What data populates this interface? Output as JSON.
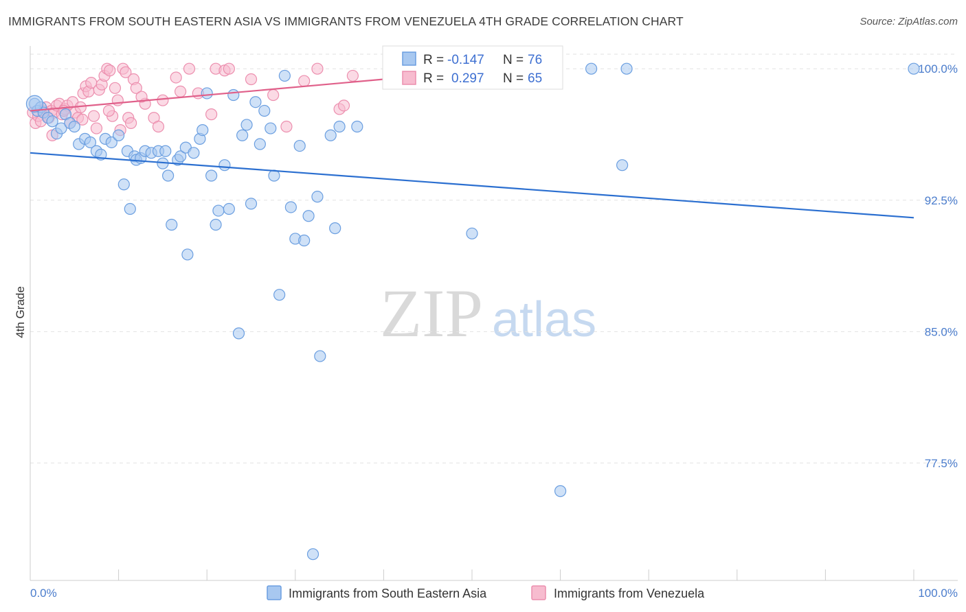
{
  "title": "IMMIGRANTS FROM SOUTH EASTERN ASIA VS IMMIGRANTS FROM VENEZUELA 4TH GRADE CORRELATION CHART",
  "source": "Source: ZipAtlas.com",
  "watermark": {
    "zip": "ZIP",
    "atlas": "atlas"
  },
  "stats": {
    "r_label": "R =",
    "n_label": "N =",
    "blue": {
      "r": "-0.147",
      "n": "76"
    },
    "pink": {
      "r": "0.297",
      "n": "65"
    }
  },
  "colors": {
    "blue_fill": "#a8c8f0",
    "blue_stroke": "#6a9ee0",
    "blue_line": "#2b6fd0",
    "pink_fill": "#f7bccf",
    "pink_stroke": "#ec8eae",
    "pink_line": "#e0608a"
  },
  "chart_data": {
    "type": "scatter",
    "title": "IMMIGRANTS FROM SOUTH EASTERN ASIA VS IMMIGRANTS FROM VENEZUELA 4TH GRADE CORRELATION CHART",
    "xlabel": "",
    "ylabel": "4th Grade",
    "xlim": [
      0,
      100
    ],
    "ylim": [
      70.8,
      101.3
    ],
    "x_tick_labels": [
      "0.0%",
      "100.0%"
    ],
    "y_ticks": [
      100,
      92.5,
      85,
      77.5
    ],
    "y_tick_labels": [
      "100.0%",
      "92.5%",
      "85.0%",
      "77.5%"
    ],
    "grid": true,
    "legend_position": "bottom",
    "series": [
      {
        "name": "Immigrants from South Eastern Asia",
        "color": "#6a9ee0",
        "trend": {
          "x": [
            0,
            100
          ],
          "y": [
            95.2,
            91.5
          ]
        },
        "points": [
          [
            0.5,
            98.0
          ],
          [
            0.8,
            97.6
          ],
          [
            1.2,
            97.8
          ],
          [
            1.5,
            97.5
          ],
          [
            2.0,
            97.2
          ],
          [
            2.5,
            97.0
          ],
          [
            3.0,
            96.3
          ],
          [
            3.5,
            96.6
          ],
          [
            4.0,
            97.4
          ],
          [
            4.5,
            96.9
          ],
          [
            5.0,
            96.7
          ],
          [
            5.5,
            95.7
          ],
          [
            6.2,
            96.0
          ],
          [
            6.8,
            95.8
          ],
          [
            7.5,
            95.3
          ],
          [
            8.0,
            95.1
          ],
          [
            8.5,
            96.0
          ],
          [
            9.2,
            95.8
          ],
          [
            10.0,
            96.2
          ],
          [
            10.6,
            93.4
          ],
          [
            11.0,
            95.3
          ],
          [
            11.3,
            92.0
          ],
          [
            11.8,
            95.0
          ],
          [
            12.0,
            94.8
          ],
          [
            12.5,
            94.9
          ],
          [
            13.0,
            95.3
          ],
          [
            13.7,
            95.2
          ],
          [
            14.5,
            95.3
          ],
          [
            15.0,
            94.6
          ],
          [
            15.3,
            95.3
          ],
          [
            15.6,
            93.9
          ],
          [
            16.0,
            91.1
          ],
          [
            16.7,
            94.8
          ],
          [
            17.0,
            95.0
          ],
          [
            17.6,
            95.5
          ],
          [
            17.8,
            89.4
          ],
          [
            18.5,
            95.2
          ],
          [
            19.2,
            96.0
          ],
          [
            19.5,
            96.5
          ],
          [
            20.0,
            98.6
          ],
          [
            20.5,
            93.9
          ],
          [
            21.0,
            91.1
          ],
          [
            21.3,
            91.9
          ],
          [
            22.0,
            94.5
          ],
          [
            22.5,
            92.0
          ],
          [
            23.0,
            98.5
          ],
          [
            23.6,
            84.9
          ],
          [
            24.0,
            96.2
          ],
          [
            24.5,
            96.8
          ],
          [
            25.0,
            92.3
          ],
          [
            25.5,
            98.1
          ],
          [
            26.0,
            95.7
          ],
          [
            26.5,
            97.6
          ],
          [
            27.2,
            96.6
          ],
          [
            27.6,
            93.9
          ],
          [
            28.2,
            87.1
          ],
          [
            28.8,
            99.6
          ],
          [
            29.5,
            92.1
          ],
          [
            30.0,
            90.3
          ],
          [
            30.5,
            95.6
          ],
          [
            31.0,
            90.2
          ],
          [
            31.5,
            91.6
          ],
          [
            32.5,
            92.7
          ],
          [
            32.8,
            83.6
          ],
          [
            34.0,
            96.2
          ],
          [
            34.5,
            90.9
          ],
          [
            35.0,
            96.7
          ],
          [
            37.0,
            96.7
          ],
          [
            43.0,
            99.9
          ],
          [
            50.0,
            90.6
          ],
          [
            60.0,
            75.9
          ],
          [
            63.5,
            100.0
          ],
          [
            67.0,
            94.5
          ],
          [
            67.5,
            100.0
          ],
          [
            32.0,
            72.3
          ],
          [
            100.0,
            100.0
          ]
        ]
      },
      {
        "name": "Immigrants from Venezuela",
        "color": "#ec8eae",
        "trend": {
          "x": [
            0,
            40
          ],
          "y": [
            97.6,
            99.4
          ]
        },
        "points": [
          [
            0.3,
            97.5
          ],
          [
            0.6,
            96.9
          ],
          [
            0.9,
            97.3
          ],
          [
            1.2,
            97.0
          ],
          [
            1.5,
            97.6
          ],
          [
            1.8,
            97.8
          ],
          [
            2.1,
            97.2
          ],
          [
            2.4,
            97.6
          ],
          [
            2.7,
            97.5
          ],
          [
            3.0,
            97.9
          ],
          [
            3.3,
            98.0
          ],
          [
            3.6,
            97.4
          ],
          [
            3.9,
            97.7
          ],
          [
            4.2,
            97.9
          ],
          [
            4.5,
            96.9
          ],
          [
            4.8,
            98.1
          ],
          [
            5.1,
            97.5
          ],
          [
            5.4,
            97.2
          ],
          [
            5.7,
            97.8
          ],
          [
            6.0,
            98.6
          ],
          [
            6.3,
            99.0
          ],
          [
            6.6,
            98.7
          ],
          [
            6.9,
            99.2
          ],
          [
            7.2,
            97.3
          ],
          [
            7.5,
            96.6
          ],
          [
            7.8,
            98.8
          ],
          [
            8.1,
            99.1
          ],
          [
            8.4,
            99.6
          ],
          [
            8.7,
            100.0
          ],
          [
            9.0,
            99.9
          ],
          [
            9.3,
            97.3
          ],
          [
            9.6,
            98.9
          ],
          [
            9.9,
            98.2
          ],
          [
            10.2,
            96.5
          ],
          [
            10.5,
            100.0
          ],
          [
            10.8,
            99.8
          ],
          [
            11.1,
            97.2
          ],
          [
            11.4,
            96.9
          ],
          [
            11.7,
            99.4
          ],
          [
            12.0,
            98.9
          ],
          [
            13.0,
            98.0
          ],
          [
            14.0,
            97.2
          ],
          [
            14.5,
            96.7
          ],
          [
            15.0,
            98.2
          ],
          [
            16.5,
            99.5
          ],
          [
            17.0,
            98.7
          ],
          [
            18.0,
            100.0
          ],
          [
            19.0,
            98.6
          ],
          [
            20.5,
            97.4
          ],
          [
            21.0,
            100.0
          ],
          [
            22.0,
            99.9
          ],
          [
            22.5,
            100.0
          ],
          [
            25.0,
            99.4
          ],
          [
            27.5,
            98.5
          ],
          [
            29.0,
            96.7
          ],
          [
            31.0,
            99.3
          ],
          [
            32.5,
            100.0
          ],
          [
            35.0,
            97.7
          ],
          [
            35.5,
            97.9
          ],
          [
            36.5,
            99.6
          ],
          [
            2.5,
            96.2
          ],
          [
            3.8,
            97.6
          ],
          [
            5.9,
            97.1
          ],
          [
            8.9,
            97.6
          ],
          [
            12.6,
            98.4
          ]
        ]
      }
    ]
  },
  "legend": {
    "items": [
      {
        "label": "Immigrants from South Eastern Asia"
      },
      {
        "label": "Immigrants from Venezuela"
      }
    ]
  }
}
